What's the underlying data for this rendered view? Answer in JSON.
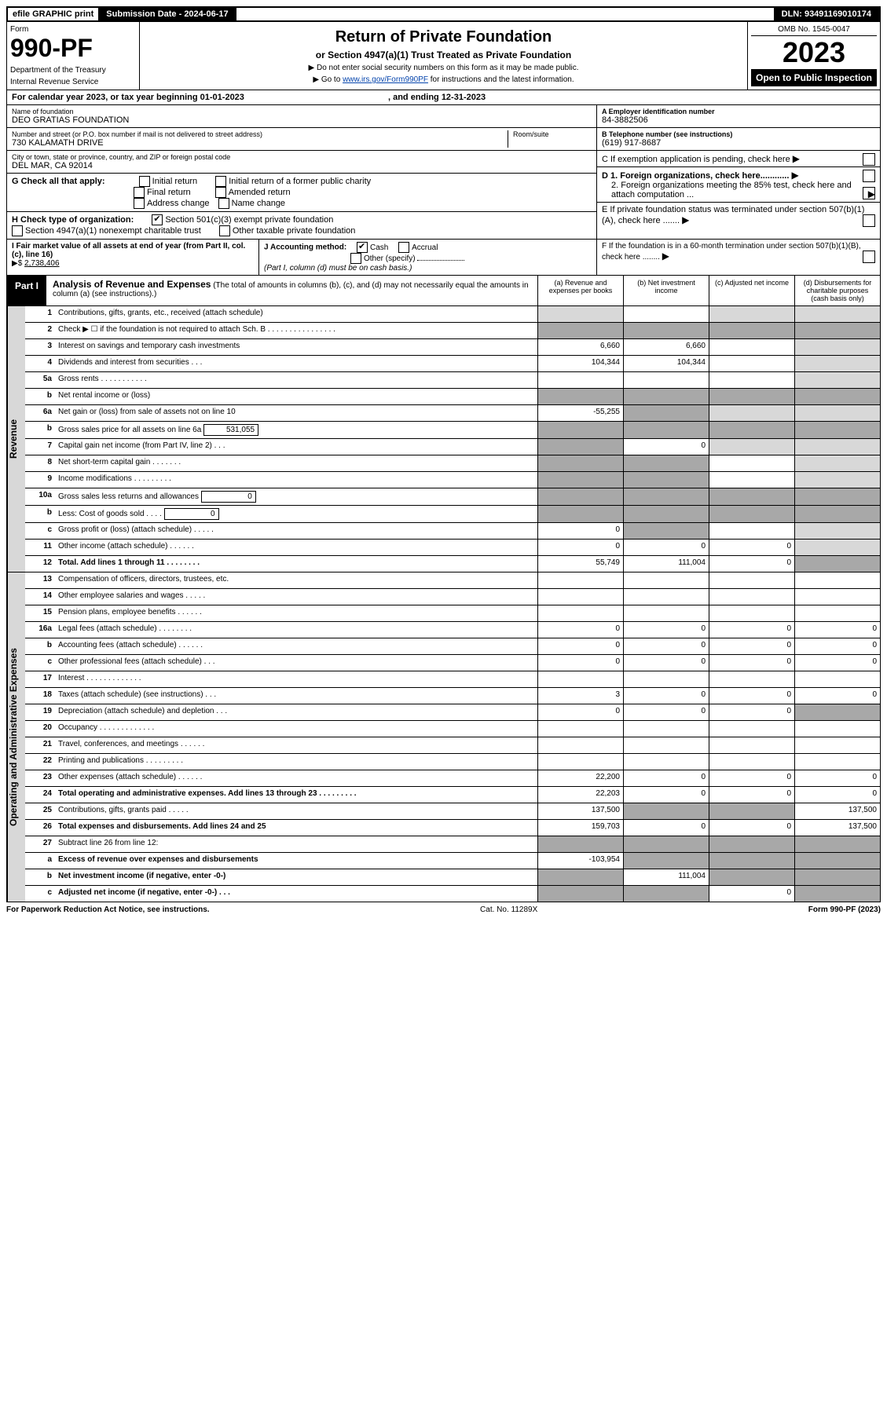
{
  "top": {
    "efile": "efile GRAPHIC print",
    "submission": "Submission Date - 2024-06-17",
    "dln": "DLN: 93491169010174"
  },
  "header": {
    "form_label": "Form",
    "form_number": "990-PF",
    "dept1": "Department of the Treasury",
    "dept2": "Internal Revenue Service",
    "title": "Return of Private Foundation",
    "subtitle": "or Section 4947(a)(1) Trust Treated as Private Foundation",
    "note1": "▶ Do not enter social security numbers on this form as it may be made public.",
    "note2_pre": "▶ Go to ",
    "note2_link": "www.irs.gov/Form990PF",
    "note2_post": " for instructions and the latest information.",
    "omb": "OMB No. 1545-0047",
    "year": "2023",
    "open_pub": "Open to Public Inspection"
  },
  "cal": {
    "text": "For calendar year 2023, or tax year beginning 01-01-2023",
    "ending": ", and ending 12-31-2023"
  },
  "info": {
    "name_label": "Name of foundation",
    "name": "DEO GRATIAS FOUNDATION",
    "addr_label": "Number and street (or P.O. box number if mail is not delivered to street address)",
    "addr": "730 KALAMATH DRIVE",
    "room_label": "Room/suite",
    "city_label": "City or town, state or province, country, and ZIP or foreign postal code",
    "city": "DEL MAR, CA  92014",
    "a_label": "A Employer identification number",
    "a_val": "84-3882506",
    "b_label": "B Telephone number (see instructions)",
    "b_val": "(619) 917-8687",
    "c_label": "C If exemption application is pending, check here",
    "d1": "D 1. Foreign organizations, check here............",
    "d2": "2. Foreign organizations meeting the 85% test, check here and attach computation ...",
    "e": "E  If private foundation status was terminated under section 507(b)(1)(A), check here .......",
    "f": "F  If the foundation is in a 60-month termination under section 507(b)(1)(B), check here ........"
  },
  "g": {
    "label": "G Check all that apply:",
    "initial": "Initial return",
    "initial_former": "Initial return of a former public charity",
    "final": "Final return",
    "amended": "Amended return",
    "address": "Address change",
    "name_change": "Name change"
  },
  "h": {
    "label": "H Check type of organization:",
    "c3": "Section 501(c)(3) exempt private foundation",
    "trust": "Section 4947(a)(1) nonexempt charitable trust",
    "other_tax": "Other taxable private foundation"
  },
  "i": {
    "label": "I Fair market value of all assets at end of year (from Part II, col. (c), line 16)",
    "val_label": "▶$",
    "val": "2,738,406"
  },
  "j": {
    "label": "J Accounting method:",
    "cash": "Cash",
    "accrual": "Accrual",
    "other": "Other (specify)",
    "note": "(Part I, column (d) must be on cash basis.)"
  },
  "part1": {
    "label": "Part I",
    "title": "Analysis of Revenue and Expenses",
    "desc": " (The total of amounts in columns (b), (c), and (d) may not necessarily equal the amounts in column (a) (see instructions).)",
    "col_a": "(a)  Revenue and expenses per books",
    "col_b": "(b)  Net investment income",
    "col_c": "(c)  Adjusted net income",
    "col_d": "(d)  Disbursements for charitable purposes (cash basis only)"
  },
  "side": {
    "revenue": "Revenue",
    "expenses": "Operating and Administrative Expenses"
  },
  "rows": [
    {
      "n": "1",
      "l": "Contributions, gifts, grants, etc., received (attach schedule)",
      "a": "",
      "b": "",
      "c": "",
      "d": "",
      "sa": true,
      "sb": false,
      "sc": true,
      "sd": true
    },
    {
      "n": "2",
      "l": "Check ▶ ☐ if the foundation is not required to attach Sch. B  . . . . . . . . . . . . . . . .",
      "a": "",
      "b": "",
      "c": "",
      "d": "",
      "sa": true,
      "sb": true,
      "sc": true,
      "sd": true,
      "dark": true
    },
    {
      "n": "3",
      "l": "Interest on savings and temporary cash investments",
      "a": "6,660",
      "b": "6,660",
      "c": "",
      "d": "",
      "sd": true
    },
    {
      "n": "4",
      "l": "Dividends and interest from securities  .  .  .",
      "a": "104,344",
      "b": "104,344",
      "c": "",
      "d": "",
      "sd": true
    },
    {
      "n": "5a",
      "l": "Gross rents  .  .  .  .  .  .  .  .  .  .  .",
      "a": "",
      "b": "",
      "c": "",
      "d": "",
      "sd": true
    },
    {
      "n": "b",
      "l": "Net rental income or (loss)  ",
      "a": "",
      "b": "",
      "c": "",
      "d": "",
      "sa": true,
      "sb": true,
      "sc": true,
      "sd": true,
      "dark": true
    },
    {
      "n": "6a",
      "l": "Net gain or (loss) from sale of assets not on line 10",
      "a": "-55,255",
      "b": "",
      "c": "",
      "d": "",
      "sb": true,
      "sc": true,
      "sd": true,
      "dark_b": true
    },
    {
      "n": "b",
      "l": "Gross sales price for all assets on line 6a",
      "inline": "531,055",
      "a": "",
      "b": "",
      "c": "",
      "d": "",
      "sa": true,
      "sb": true,
      "sc": true,
      "sd": true,
      "dark": true
    },
    {
      "n": "7",
      "l": "Capital gain net income (from Part IV, line 2)  .  .  .",
      "a": "",
      "b": "0",
      "c": "",
      "d": "",
      "sa": true,
      "sc": true,
      "sd": true,
      "dark_a": true
    },
    {
      "n": "8",
      "l": "Net short-term capital gain  .  .  .  .  .  .  .",
      "a": "",
      "b": "",
      "c": "",
      "d": "",
      "sa": true,
      "sb": true,
      "sd": true,
      "dark_a": true,
      "dark_b": true
    },
    {
      "n": "9",
      "l": "Income modifications .  .  .  .  .  .  .  .  .",
      "a": "",
      "b": "",
      "c": "",
      "d": "",
      "sa": true,
      "sb": true,
      "sd": true,
      "dark_a": true,
      "dark_b": true
    },
    {
      "n": "10a",
      "l": "Gross sales less returns and allowances",
      "inline": "0",
      "a": "",
      "b": "",
      "c": "",
      "d": "",
      "sa": true,
      "sb": true,
      "sc": true,
      "sd": true,
      "dark": true
    },
    {
      "n": "b",
      "l": "Less: Cost of goods sold  .  .  .  .",
      "inline": "0",
      "a": "",
      "b": "",
      "c": "",
      "d": "",
      "sa": true,
      "sb": true,
      "sc": true,
      "sd": true,
      "dark": true
    },
    {
      "n": "c",
      "l": "Gross profit or (loss) (attach schedule)  .  .  .  .  .",
      "a": "0",
      "b": "",
      "c": "",
      "d": "",
      "sb": true,
      "sd": true,
      "dark_b": true
    },
    {
      "n": "11",
      "l": "Other income (attach schedule)  .  .  .  .  .  .",
      "a": "0",
      "b": "0",
      "c": "0",
      "d": "",
      "sd": true
    },
    {
      "n": "12",
      "l": "Total. Add lines 1 through 11  .  .  .  .  .  .  .  .",
      "bold": true,
      "a": "55,749",
      "b": "111,004",
      "c": "0",
      "d": "",
      "sd": true,
      "dark_d": true
    },
    {
      "n": "13",
      "l": "Compensation of officers, directors, trustees, etc.",
      "a": "",
      "b": "",
      "c": "",
      "d": ""
    },
    {
      "n": "14",
      "l": "Other employee salaries and wages  .  .  .  .  .",
      "a": "",
      "b": "",
      "c": "",
      "d": ""
    },
    {
      "n": "15",
      "l": "Pension plans, employee benefits .  .  .  .  .  .",
      "a": "",
      "b": "",
      "c": "",
      "d": ""
    },
    {
      "n": "16a",
      "l": "Legal fees (attach schedule) .  .  .  .  .  .  .  .",
      "a": "0",
      "b": "0",
      "c": "0",
      "d": "0"
    },
    {
      "n": "b",
      "l": "Accounting fees (attach schedule) .  .  .  .  .  .",
      "a": "0",
      "b": "0",
      "c": "0",
      "d": "0"
    },
    {
      "n": "c",
      "l": "Other professional fees (attach schedule)  .  .  .",
      "a": "0",
      "b": "0",
      "c": "0",
      "d": "0"
    },
    {
      "n": "17",
      "l": "Interest  .  .  .  .  .  .  .  .  .  .  .  .  .",
      "a": "",
      "b": "",
      "c": "",
      "d": ""
    },
    {
      "n": "18",
      "l": "Taxes (attach schedule) (see instructions)  .  .  .",
      "a": "3",
      "b": "0",
      "c": "0",
      "d": "0"
    },
    {
      "n": "19",
      "l": "Depreciation (attach schedule) and depletion  .  .  .",
      "a": "0",
      "b": "0",
      "c": "0",
      "d": "",
      "sd": true,
      "dark_d": true
    },
    {
      "n": "20",
      "l": "Occupancy .  .  .  .  .  .  .  .  .  .  .  .  .",
      "a": "",
      "b": "",
      "c": "",
      "d": ""
    },
    {
      "n": "21",
      "l": "Travel, conferences, and meetings .  .  .  .  .  .",
      "a": "",
      "b": "",
      "c": "",
      "d": ""
    },
    {
      "n": "22",
      "l": "Printing and publications .  .  .  .  .  .  .  .  .",
      "a": "",
      "b": "",
      "c": "",
      "d": ""
    },
    {
      "n": "23",
      "l": "Other expenses (attach schedule) .  .  .  .  .  .",
      "a": "22,200",
      "b": "0",
      "c": "0",
      "d": "0"
    },
    {
      "n": "24",
      "l": "Total operating and administrative expenses. Add lines 13 through 23  .  .  .  .  .  .  .  .  .",
      "bold": true,
      "a": "22,203",
      "b": "0",
      "c": "0",
      "d": "0"
    },
    {
      "n": "25",
      "l": "Contributions, gifts, grants paid  .  .  .  .  .",
      "a": "137,500",
      "b": "",
      "c": "",
      "d": "137,500",
      "sb": true,
      "sc": true,
      "dark_b": true,
      "dark_c": true
    },
    {
      "n": "26",
      "l": "Total expenses and disbursements. Add lines 24 and 25",
      "bold": true,
      "a": "159,703",
      "b": "0",
      "c": "0",
      "d": "137,500"
    },
    {
      "n": "27",
      "l": "Subtract line 26 from line 12:",
      "a": "",
      "b": "",
      "c": "",
      "d": "",
      "sa": true,
      "sb": true,
      "sc": true,
      "sd": true,
      "dark": true
    },
    {
      "n": "a",
      "l": "Excess of revenue over expenses and disbursements",
      "bold": true,
      "a": "-103,954",
      "b": "",
      "c": "",
      "d": "",
      "sb": true,
      "sc": true,
      "sd": true,
      "dark_b": true,
      "dark_c": true,
      "dark_d": true
    },
    {
      "n": "b",
      "l": "Net investment income (if negative, enter -0-)",
      "bold": true,
      "a": "",
      "b": "111,004",
      "c": "",
      "d": "",
      "sa": true,
      "sc": true,
      "sd": true,
      "dark_a": true,
      "dark_c": true,
      "dark_d": true
    },
    {
      "n": "c",
      "l": "Adjusted net income (if negative, enter -0-)  .  .  .",
      "bold": true,
      "a": "",
      "b": "",
      "c": "0",
      "d": "",
      "sa": true,
      "sb": true,
      "sd": true,
      "dark_a": true,
      "dark_b": true,
      "dark_d": true
    }
  ],
  "footer": {
    "left": "For Paperwork Reduction Act Notice, see instructions.",
    "center": "Cat. No. 11289X",
    "right": "Form 990-PF (2023)"
  }
}
